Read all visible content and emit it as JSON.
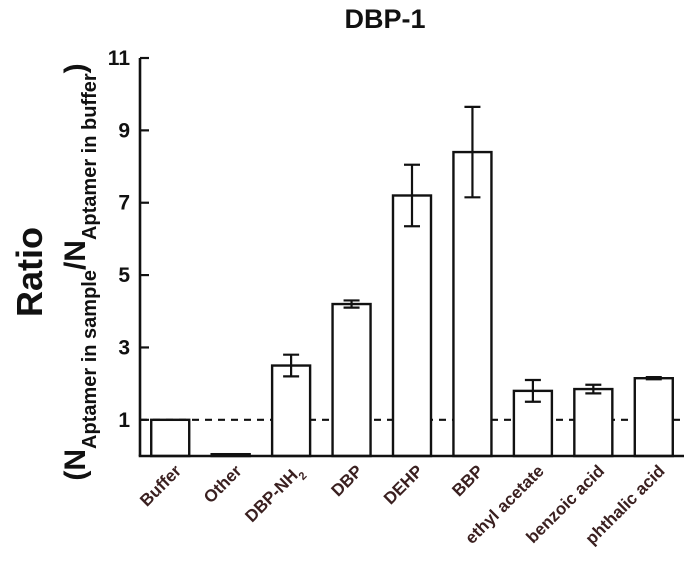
{
  "chart_data": {
    "type": "bar",
    "title": "DBP-1",
    "ylabel": {
      "main": "Ratio",
      "open_paren": "(",
      "n1": "N",
      "sub1": "Aptamer in sample",
      "slash": "/",
      "n2": "N",
      "sub2": "Aptamer in buffer",
      "close_paren": ")"
    },
    "ylim": [
      0,
      11
    ],
    "yticks": [
      1,
      3,
      5,
      7,
      9,
      11
    ],
    "reference_line": 1,
    "categories": [
      "Buffer",
      "Other",
      "DBP-NH2",
      "DBP",
      "DEHP",
      "BBP",
      "ethyl acetate",
      "benzoic acid",
      "phthalic acid"
    ],
    "category_labels": [
      {
        "text": "Buffer"
      },
      {
        "text": "Other"
      },
      {
        "text": "DBP-NH",
        "sub": "2"
      },
      {
        "text": "DBP"
      },
      {
        "text": "DEHP"
      },
      {
        "text": "BBP"
      },
      {
        "text": "ethyl acetate"
      },
      {
        "text": "benzoic acid"
      },
      {
        "text": "phthalic acid"
      }
    ],
    "values": [
      1.0,
      0.05,
      2.5,
      4.2,
      7.2,
      8.4,
      1.8,
      1.85,
      2.15
    ],
    "errors": [
      0,
      0,
      0.3,
      0.1,
      0.85,
      1.25,
      0.3,
      0.12,
      0.03
    ]
  }
}
